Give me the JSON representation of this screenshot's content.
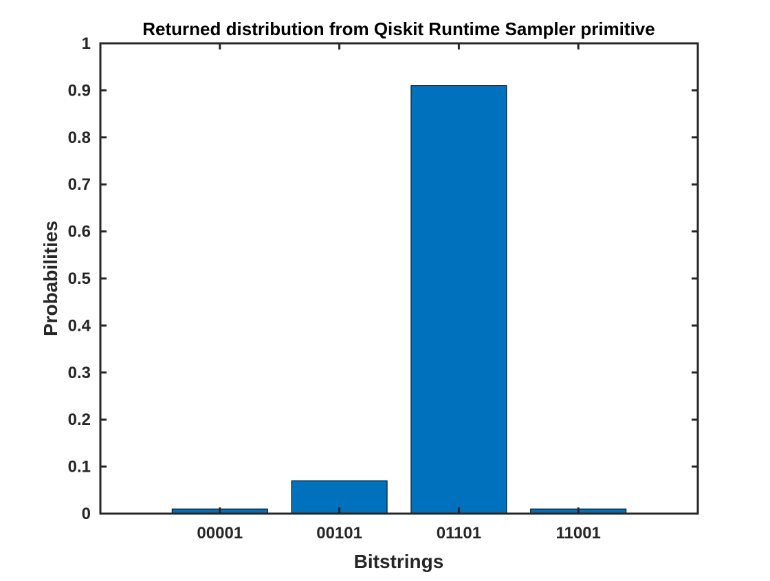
{
  "chart_data": {
    "type": "bar",
    "title": "Returned distribution from Qiskit Runtime Sampler primitive",
    "xlabel": "Bitstrings",
    "ylabel": "Probabilities",
    "categories": [
      "00001",
      "00101",
      "01101",
      "11001"
    ],
    "values": [
      0.01,
      0.07,
      0.91,
      0.01
    ],
    "ylim": [
      0,
      1
    ],
    "yticks": [
      "0",
      "0.1",
      "0.2",
      "0.3",
      "0.4",
      "0.5",
      "0.6",
      "0.7",
      "0.8",
      "0.9",
      "1"
    ],
    "grid": false,
    "legend": "none",
    "colors": {
      "bar_fill": "#0072BD",
      "bar_edge": "#000000",
      "axes": "#262626"
    }
  }
}
